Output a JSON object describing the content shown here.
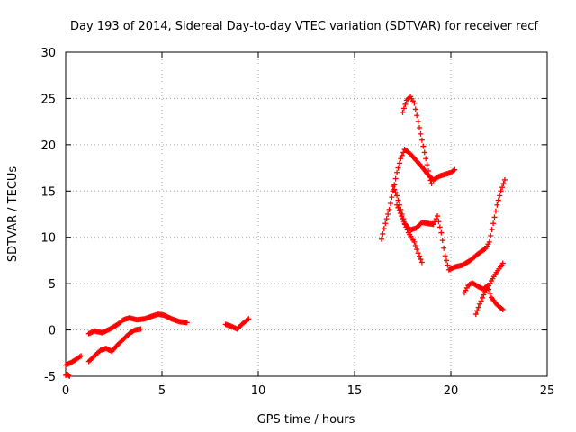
{
  "chart_data": {
    "type": "scatter",
    "title": "Day 193 of 2014, Sidereal Day-to-day VTEC variation (SDTVAR) for receiver recf",
    "xlabel": "GPS time / hours",
    "ylabel": "SDTVAR / TECUs",
    "xlim": [
      0,
      25
    ],
    "ylim": [
      -5,
      30
    ],
    "xticks": [
      "0",
      "5",
      "10",
      "15",
      "20",
      "25"
    ],
    "yticks": [
      "-5",
      "0",
      "5",
      "10",
      "15",
      "20",
      "25",
      "30"
    ],
    "grid": true,
    "marker": "plus",
    "color": "#ff0000",
    "series": [
      {
        "name": "track-1",
        "points": [
          [
            0.0,
            -3.8
          ],
          [
            0.3,
            -3.5
          ],
          [
            0.6,
            -3.1
          ],
          [
            0.8,
            -2.8
          ]
        ]
      },
      {
        "name": "track-2",
        "points": [
          [
            0.0,
            -4.9
          ],
          [
            0.1,
            -4.8
          ],
          [
            0.2,
            -5.0
          ]
        ]
      },
      {
        "name": "track-3",
        "points": [
          [
            1.2,
            -0.4
          ],
          [
            1.5,
            -0.1
          ],
          [
            1.9,
            -0.3
          ],
          [
            2.3,
            0.1
          ],
          [
            2.7,
            0.6
          ],
          [
            3.0,
            1.1
          ],
          [
            3.3,
            1.3
          ],
          [
            3.7,
            1.1
          ],
          [
            4.1,
            1.2
          ],
          [
            4.5,
            1.5
          ],
          [
            4.8,
            1.7
          ],
          [
            5.1,
            1.6
          ],
          [
            5.5,
            1.2
          ],
          [
            5.9,
            0.9
          ],
          [
            6.3,
            0.8
          ]
        ]
      },
      {
        "name": "track-4",
        "points": [
          [
            1.2,
            -3.4
          ],
          [
            1.5,
            -2.8
          ],
          [
            1.8,
            -2.2
          ],
          [
            2.1,
            -2.0
          ],
          [
            2.4,
            -2.3
          ],
          [
            2.7,
            -1.6
          ],
          [
            3.0,
            -1.0
          ],
          [
            3.3,
            -0.4
          ],
          [
            3.6,
            0.0
          ],
          [
            3.9,
            0.1
          ]
        ]
      },
      {
        "name": "track-5",
        "points": [
          [
            8.3,
            0.6
          ],
          [
            8.6,
            0.4
          ],
          [
            8.9,
            0.1
          ],
          [
            9.2,
            0.7
          ],
          [
            9.5,
            1.2
          ]
        ]
      },
      {
        "name": "track-6",
        "points": [
          [
            16.4,
            9.8
          ],
          [
            16.6,
            11.5
          ],
          [
            16.8,
            13.0
          ],
          [
            17.0,
            15.0
          ],
          [
            17.2,
            17.0
          ],
          [
            17.4,
            18.5
          ],
          [
            17.6,
            19.5
          ],
          [
            17.9,
            19.0
          ],
          [
            18.2,
            18.3
          ],
          [
            18.5,
            17.6
          ],
          [
            18.8,
            16.8
          ],
          [
            19.1,
            16.2
          ],
          [
            19.4,
            16.6
          ],
          [
            19.7,
            16.8
          ],
          [
            20.0,
            17.0
          ],
          [
            20.2,
            17.3
          ]
        ]
      },
      {
        "name": "track-7",
        "points": [
          [
            17.0,
            15.5
          ],
          [
            17.2,
            14.5
          ],
          [
            17.4,
            13.0
          ],
          [
            17.6,
            11.5
          ],
          [
            17.9,
            10.8
          ],
          [
            18.2,
            11.0
          ],
          [
            18.5,
            11.6
          ],
          [
            18.8,
            11.5
          ],
          [
            19.1,
            11.4
          ],
          [
            19.3,
            12.3
          ],
          [
            19.5,
            10.5
          ],
          [
            19.7,
            8.0
          ],
          [
            19.9,
            6.5
          ],
          [
            20.2,
            6.8
          ],
          [
            20.6,
            7.0
          ],
          [
            21.0,
            7.5
          ],
          [
            21.4,
            8.2
          ],
          [
            21.8,
            8.8
          ],
          [
            22.0,
            9.5
          ],
          [
            22.2,
            11.5
          ],
          [
            22.4,
            13.5
          ],
          [
            22.6,
            15.0
          ],
          [
            22.8,
            16.2
          ]
        ]
      },
      {
        "name": "track-8",
        "points": [
          [
            17.5,
            23.5
          ],
          [
            17.7,
            24.8
          ],
          [
            17.9,
            25.2
          ],
          [
            18.1,
            24.5
          ],
          [
            18.3,
            22.5
          ],
          [
            18.5,
            20.5
          ],
          [
            18.7,
            18.5
          ],
          [
            18.9,
            16.5
          ],
          [
            19.0,
            15.8
          ]
        ]
      },
      {
        "name": "track-9",
        "points": [
          [
            17.2,
            13.5
          ],
          [
            17.5,
            12.0
          ],
          [
            17.8,
            10.5
          ],
          [
            18.1,
            9.5
          ],
          [
            18.3,
            8.3
          ],
          [
            18.5,
            7.3
          ]
        ]
      },
      {
        "name": "track-10",
        "points": [
          [
            20.7,
            4.0
          ],
          [
            20.9,
            4.8
          ],
          [
            21.1,
            5.1
          ],
          [
            21.4,
            4.7
          ],
          [
            21.7,
            4.4
          ],
          [
            21.9,
            4.8
          ],
          [
            22.1,
            3.5
          ],
          [
            22.4,
            2.7
          ],
          [
            22.7,
            2.2
          ]
        ]
      },
      {
        "name": "track-11",
        "points": [
          [
            21.3,
            1.7
          ],
          [
            21.5,
            2.8
          ],
          [
            21.7,
            3.8
          ],
          [
            21.9,
            4.5
          ],
          [
            22.1,
            5.3
          ],
          [
            22.3,
            6.0
          ],
          [
            22.5,
            6.6
          ],
          [
            22.7,
            7.2
          ]
        ]
      }
    ]
  }
}
